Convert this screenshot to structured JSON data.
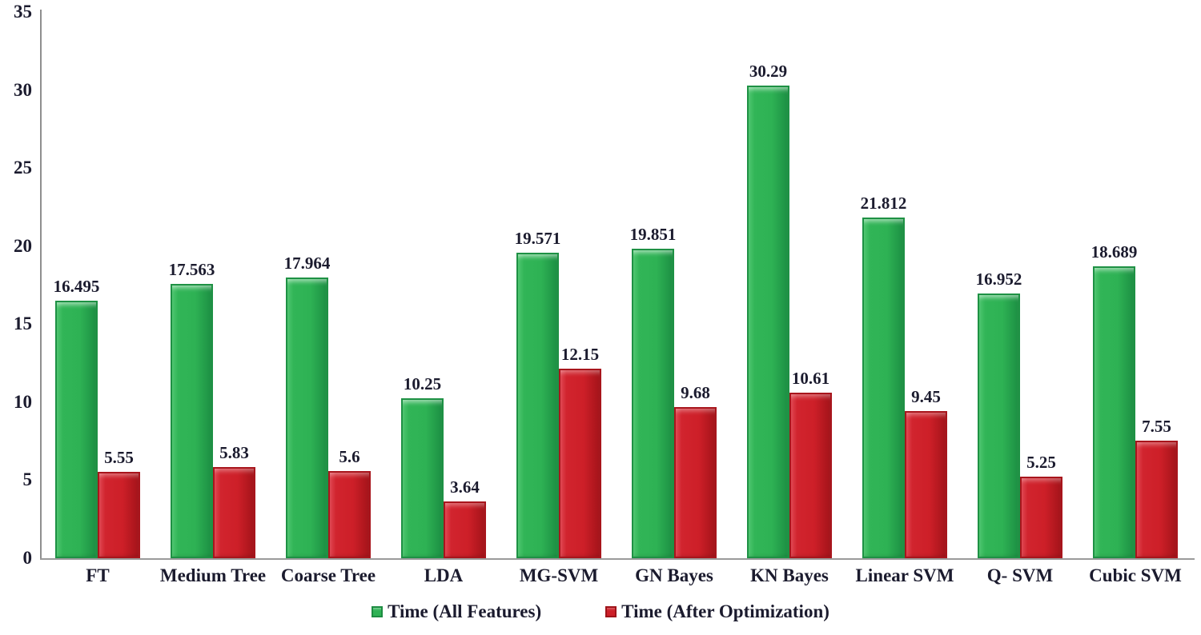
{
  "accent_colors": {
    "bar_green": "#2EB254",
    "bar_red": "#CD1F28",
    "text": "#1B1B2E",
    "axis_gray": "#9B9B9B"
  },
  "legend": {
    "all_features_label": "Time (All Features)",
    "after_optimization_label": "Time (After Optimization)"
  },
  "chart_data": {
    "type": "bar",
    "title": "",
    "xlabel": "",
    "ylabel": "",
    "ylim": [
      0,
      35
    ],
    "yticks": [
      0,
      5,
      10,
      15,
      20,
      25,
      30,
      35
    ],
    "grid": false,
    "legend_position": "bottom-center",
    "categories": [
      "FT",
      "Medium Tree",
      "Coarse Tree",
      "LDA",
      "MG-SVM",
      "GN Bayes",
      "KN Bayes",
      "Linear SVM",
      "Q- SVM",
      "Cubic SVM"
    ],
    "series": [
      {
        "name": "Time (All Features)",
        "color": "#2EB254",
        "values": [
          16.495,
          17.563,
          17.964,
          10.25,
          19.571,
          19.851,
          30.29,
          21.812,
          16.952,
          18.689
        ],
        "labels": [
          "16.495",
          "17.563",
          "17.964",
          "10.25",
          "19.571",
          "19.851",
          "30.29",
          "21.812",
          "16.952",
          "18.689"
        ]
      },
      {
        "name": "Time (After Optimization)",
        "color": "#CD1F28",
        "values": [
          5.55,
          5.83,
          5.6,
          3.64,
          12.15,
          9.68,
          10.61,
          9.45,
          5.25,
          7.55
        ],
        "labels": [
          "5.55",
          "5.83",
          "5.6",
          "3.64",
          "12.15",
          "9.68",
          "10.61",
          "9.45",
          "5.25",
          "7.55"
        ]
      }
    ]
  }
}
